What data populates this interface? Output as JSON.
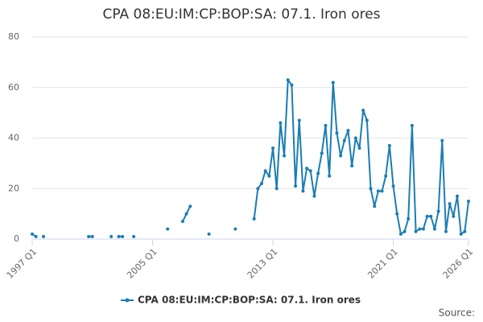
{
  "chart_data": {
    "type": "line",
    "title": "CPA 08:EU:IM:CP:BOP:SA: 07.1. Iron ores",
    "credits": "Source:",
    "categories": [
      "1997 Q1",
      null,
      null,
      null,
      null,
      null,
      null,
      null,
      null,
      null,
      null,
      null,
      null,
      null,
      null,
      null,
      null,
      null,
      null,
      null,
      null,
      null,
      null,
      null,
      null,
      null,
      null,
      null,
      null,
      null,
      null,
      null,
      "2005 Q1",
      null,
      null,
      null,
      null,
      null,
      null,
      null,
      null,
      null,
      null,
      null,
      null,
      null,
      null,
      null,
      null,
      null,
      null,
      null,
      null,
      null,
      null,
      null,
      null,
      null,
      null,
      null,
      null,
      null,
      null,
      null,
      "2013 Q1",
      null,
      null,
      null,
      null,
      null,
      null,
      null,
      null,
      null,
      null,
      null,
      null,
      null,
      null,
      null,
      null,
      null,
      null,
      null,
      null,
      null,
      null,
      null,
      null,
      null,
      null,
      null,
      null,
      null,
      null,
      null,
      "2021 Q1",
      null,
      null,
      null,
      null,
      null,
      null,
      null,
      null,
      null,
      null,
      null,
      null,
      null,
      null,
      null,
      null,
      null,
      null,
      null,
      "2026 Q1"
    ],
    "series": [
      {
        "name": "CPA 08:EU:IM:CP:BOP:SA: 07.1. Iron ores",
        "color": "#1b7db3",
        "values": [
          2,
          1,
          null,
          1,
          null,
          null,
          null,
          null,
          null,
          null,
          null,
          null,
          null,
          null,
          null,
          1,
          1,
          null,
          null,
          null,
          null,
          1,
          null,
          1,
          1,
          null,
          null,
          1,
          null,
          null,
          null,
          null,
          null,
          null,
          null,
          null,
          4,
          null,
          null,
          null,
          7,
          10,
          13,
          null,
          null,
          null,
          null,
          2,
          null,
          null,
          null,
          null,
          null,
          null,
          4,
          null,
          null,
          null,
          null,
          8,
          20,
          22,
          27,
          25,
          36,
          20,
          46,
          33,
          63,
          61,
          21,
          47,
          19,
          28,
          27,
          17,
          26,
          34,
          45,
          25,
          62,
          42,
          33,
          39,
          43,
          29,
          40,
          36,
          51,
          47,
          20,
          13,
          19,
          19,
          25,
          37,
          21,
          10,
          2,
          3,
          8,
          45,
          3,
          4,
          4,
          9,
          9,
          4,
          11,
          39,
          3,
          14,
          9,
          17,
          2,
          3,
          15
        ]
      }
    ],
    "ylim": [
      0,
      80
    ],
    "yticks": [
      0,
      20,
      40,
      60,
      80
    ],
    "grid": true,
    "legend": "bottom"
  }
}
